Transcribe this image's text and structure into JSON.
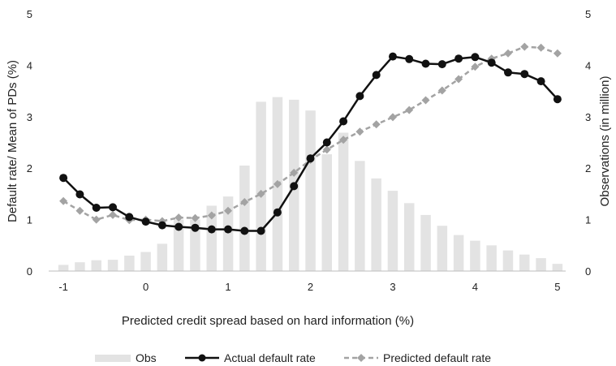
{
  "chart_data": {
    "type": "bar+line",
    "title": "",
    "xlabel": "Predicted credit spread based on hard information (%)",
    "ylabel_left": "Default rate/ Mean of PDs (%)",
    "ylabel_right": "Observations (in million)",
    "xlim": [
      -1.1,
      5.1
    ],
    "ylim_left": [
      0,
      5
    ],
    "ylim_right": [
      0,
      5
    ],
    "x_ticks": [
      "-1",
      "0",
      "1",
      "2",
      "3",
      "4",
      "5"
    ],
    "x_tick_values": [
      -1,
      0,
      1,
      2,
      3,
      4,
      5
    ],
    "y_ticks_left": [
      "0",
      "1",
      "2",
      "3",
      "4",
      "5"
    ],
    "y_ticks_right": [
      "0",
      "1",
      "2",
      "3",
      "4",
      "5"
    ],
    "grid": false,
    "legend_position": "bottom",
    "x": [
      -1.0,
      -0.8,
      -0.6,
      -0.4,
      -0.2,
      0.0,
      0.2,
      0.4,
      0.6,
      0.8,
      1.0,
      1.2,
      1.4,
      1.6,
      1.8,
      2.0,
      2.2,
      2.4,
      2.6,
      2.8,
      3.0,
      3.2,
      3.4,
      3.6,
      3.8,
      4.0,
      4.2,
      4.4,
      4.6,
      4.8,
      5.0
    ],
    "series": [
      {
        "name": "Obs",
        "type": "bar",
        "axis": "right",
        "color": "#e3e3e3",
        "values": [
          0.12,
          0.17,
          0.21,
          0.22,
          0.3,
          0.37,
          0.53,
          1.0,
          1.0,
          1.27,
          1.45,
          2.05,
          3.29,
          3.38,
          3.33,
          3.12,
          2.27,
          2.69,
          2.14,
          1.8,
          1.56,
          1.32,
          1.09,
          0.88,
          0.7,
          0.59,
          0.5,
          0.4,
          0.32,
          0.25,
          0.14
        ]
      },
      {
        "name": "Actual default rate",
        "type": "line",
        "axis": "left",
        "color": "#111111",
        "dashed": false,
        "marker": "circle",
        "values": [
          1.81,
          1.49,
          1.23,
          1.24,
          1.05,
          0.96,
          0.89,
          0.86,
          0.84,
          0.81,
          0.81,
          0.78,
          0.78,
          1.14,
          1.65,
          2.19,
          2.5,
          2.91,
          3.4,
          3.81,
          4.17,
          4.12,
          4.03,
          4.02,
          4.13,
          4.16,
          4.05,
          3.86,
          3.83,
          3.69,
          3.34
        ]
      },
      {
        "name": "Predicted default rate",
        "type": "line",
        "axis": "left",
        "color": "#a3a3a3",
        "dashed": true,
        "marker": "diamond",
        "values": [
          1.36,
          1.17,
          1.0,
          1.09,
          0.99,
          1.0,
          0.97,
          1.04,
          1.03,
          1.08,
          1.17,
          1.34,
          1.5,
          1.69,
          1.91,
          2.16,
          2.36,
          2.55,
          2.71,
          2.85,
          2.99,
          3.13,
          3.32,
          3.51,
          3.73,
          3.97,
          4.13,
          4.23,
          4.36,
          4.34,
          4.23
        ]
      }
    ]
  }
}
